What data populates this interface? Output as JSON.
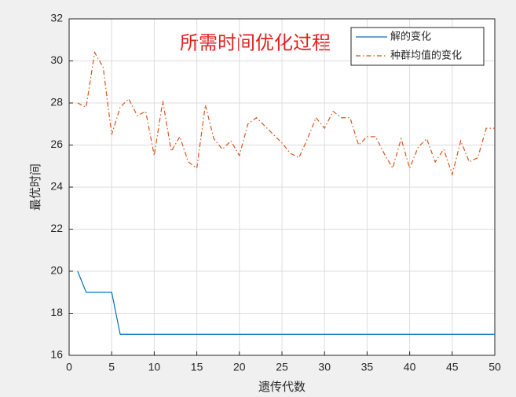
{
  "chart_data": {
    "type": "line",
    "title": "所需时间优化过程",
    "xlabel": "遗传代数",
    "ylabel": "最优时间",
    "x": [
      1,
      2,
      3,
      4,
      5,
      6,
      7,
      8,
      9,
      10,
      11,
      12,
      13,
      14,
      15,
      16,
      17,
      18,
      19,
      20,
      21,
      22,
      23,
      24,
      25,
      26,
      27,
      28,
      29,
      30,
      31,
      32,
      33,
      34,
      35,
      36,
      37,
      38,
      39,
      40,
      41,
      42,
      43,
      44,
      45,
      46,
      47,
      48,
      49,
      50
    ],
    "series": [
      {
        "name": "解的变化",
        "color": "#0072bd",
        "dash": "none",
        "values": [
          20,
          19,
          19,
          19,
          19,
          17,
          17,
          17,
          17,
          17,
          17,
          17,
          17,
          17,
          17,
          17,
          17,
          17,
          17,
          17,
          17,
          17,
          17,
          17,
          17,
          17,
          17,
          17,
          17,
          17,
          17,
          17,
          17,
          17,
          17,
          17,
          17,
          17,
          17,
          17,
          17,
          17,
          17,
          17,
          17,
          17,
          17,
          17,
          17,
          17
        ]
      },
      {
        "name": "种群均值的变化",
        "color": "#d95319",
        "dash": "6 3 1.5 3",
        "values": [
          28.0,
          27.8,
          30.4,
          29.7,
          26.5,
          27.8,
          28.2,
          27.4,
          27.6,
          25.5,
          28.1,
          25.7,
          26.4,
          25.2,
          24.9,
          27.9,
          26.3,
          25.8,
          26.2,
          25.5,
          27.0,
          27.3,
          26.9,
          26.5,
          26.1,
          25.6,
          25.4,
          26.3,
          27.3,
          26.8,
          27.6,
          27.3,
          27.3,
          26.0,
          26.4,
          26.4,
          25.6,
          24.9,
          26.3,
          24.9,
          25.9,
          26.3,
          25.2,
          25.8,
          24.6,
          26.2,
          25.2,
          25.4,
          26.8,
          26.8
        ]
      }
    ],
    "xlim": [
      0,
      50
    ],
    "xticks": [
      0,
      5,
      10,
      15,
      20,
      25,
      30,
      35,
      40,
      45,
      50
    ],
    "ylim": [
      16,
      32
    ],
    "yticks": [
      16,
      18,
      20,
      22,
      24,
      26,
      28,
      30,
      32
    ],
    "grid": true,
    "legend": "top-right"
  }
}
